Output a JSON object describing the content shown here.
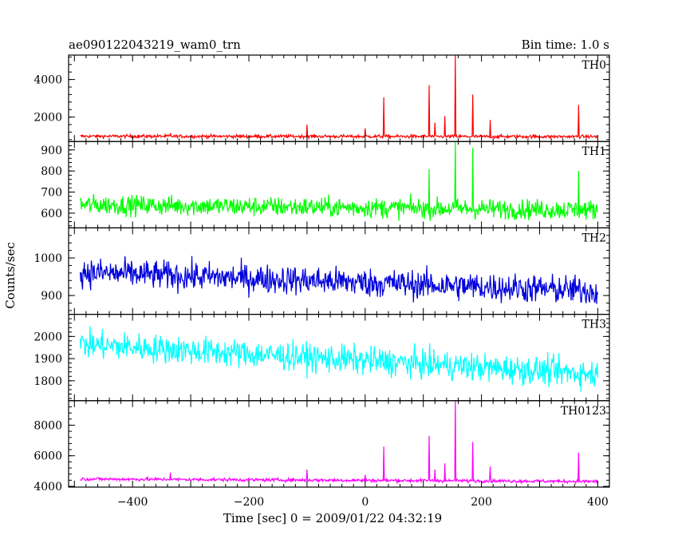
{
  "header": {
    "title": "ae090122043219_wam0_trn",
    "bin_time": "Bin time: 1.0 s"
  },
  "chart_data": {
    "type": "line",
    "title": "ae090122043219_wam0_trn",
    "subtitle": "Bin time: 1.0 s",
    "xlabel": "Time [sec] 0 = 2009/01/22 04:32:19",
    "ylabel": "Counts/sec",
    "xlim": [
      -510,
      420
    ],
    "x_range": [
      -490,
      400
    ],
    "x_ticks": [
      -400,
      -200,
      0,
      200,
      400
    ],
    "x_tick_labels": [
      "−400",
      "−200",
      "0",
      "200",
      "400"
    ],
    "grid": false,
    "panels": [
      {
        "name": "TH0",
        "color": "#ff0000",
        "ylim": [
          700,
          5300
        ],
        "y_ticks": [
          2000,
          4000
        ],
        "y_tick_labels": [
          "2000",
          "4000"
        ],
        "baseline": 980,
        "noise": 60,
        "trend_end": 960,
        "spikes": [
          {
            "x": -335,
            "y": 1150
          },
          {
            "x": -100,
            "y": 1600
          },
          {
            "x": 0,
            "y": 1400
          },
          {
            "x": 32,
            "y": 3050
          },
          {
            "x": 110,
            "y": 3700
          },
          {
            "x": 120,
            "y": 1700
          },
          {
            "x": 137,
            "y": 2050
          },
          {
            "x": 155,
            "y": 5300
          },
          {
            "x": 185,
            "y": 3200
          },
          {
            "x": 215,
            "y": 1850
          },
          {
            "x": 367,
            "y": 2650
          }
        ]
      },
      {
        "name": "TH1",
        "color": "#00ff00",
        "ylim": [
          530,
          940
        ],
        "y_ticks": [
          600,
          700,
          800,
          900
        ],
        "y_tick_labels": [
          "600",
          "700",
          "800",
          "900"
        ],
        "baseline": 640,
        "noise": 33,
        "trend_end": 615,
        "spikes": [
          {
            "x": 110,
            "y": 810
          },
          {
            "x": 155,
            "y": 940
          },
          {
            "x": 185,
            "y": 910
          },
          {
            "x": 367,
            "y": 800
          }
        ]
      },
      {
        "name": "TH2",
        "color": "#0000dd",
        "ylim": [
          850,
          1080
        ],
        "y_ticks": [
          900,
          1000
        ],
        "y_tick_labels": [
          "900",
          "1000"
        ],
        "baseline": 962,
        "noise": 27,
        "trend_end": 912,
        "spikes": []
      },
      {
        "name": "TH3",
        "color": "#00ffff",
        "ylim": [
          1710,
          2100
        ],
        "y_ticks": [
          1800,
          1900,
          2000
        ],
        "y_tick_labels": [
          "1800",
          "1900",
          "2000"
        ],
        "baseline": 1965,
        "noise": 45,
        "trend_end": 1830,
        "spikes": []
      },
      {
        "name": "TH0123",
        "color": "#ff00ff",
        "ylim": [
          3950,
          9600
        ],
        "y_ticks": [
          4000,
          6000,
          8000
        ],
        "y_tick_labels": [
          "4000",
          "6000",
          "8000"
        ],
        "baseline": 4480,
        "noise": 75,
        "trend_end": 4320,
        "spikes": [
          {
            "x": -335,
            "y": 4900
          },
          {
            "x": -100,
            "y": 5100
          },
          {
            "x": 0,
            "y": 4750
          },
          {
            "x": 32,
            "y": 6600
          },
          {
            "x": 110,
            "y": 7300
          },
          {
            "x": 120,
            "y": 5100
          },
          {
            "x": 137,
            "y": 5500
          },
          {
            "x": 155,
            "y": 9600
          },
          {
            "x": 185,
            "y": 6900
          },
          {
            "x": 215,
            "y": 5300
          },
          {
            "x": 367,
            "y": 6200
          }
        ]
      }
    ]
  }
}
